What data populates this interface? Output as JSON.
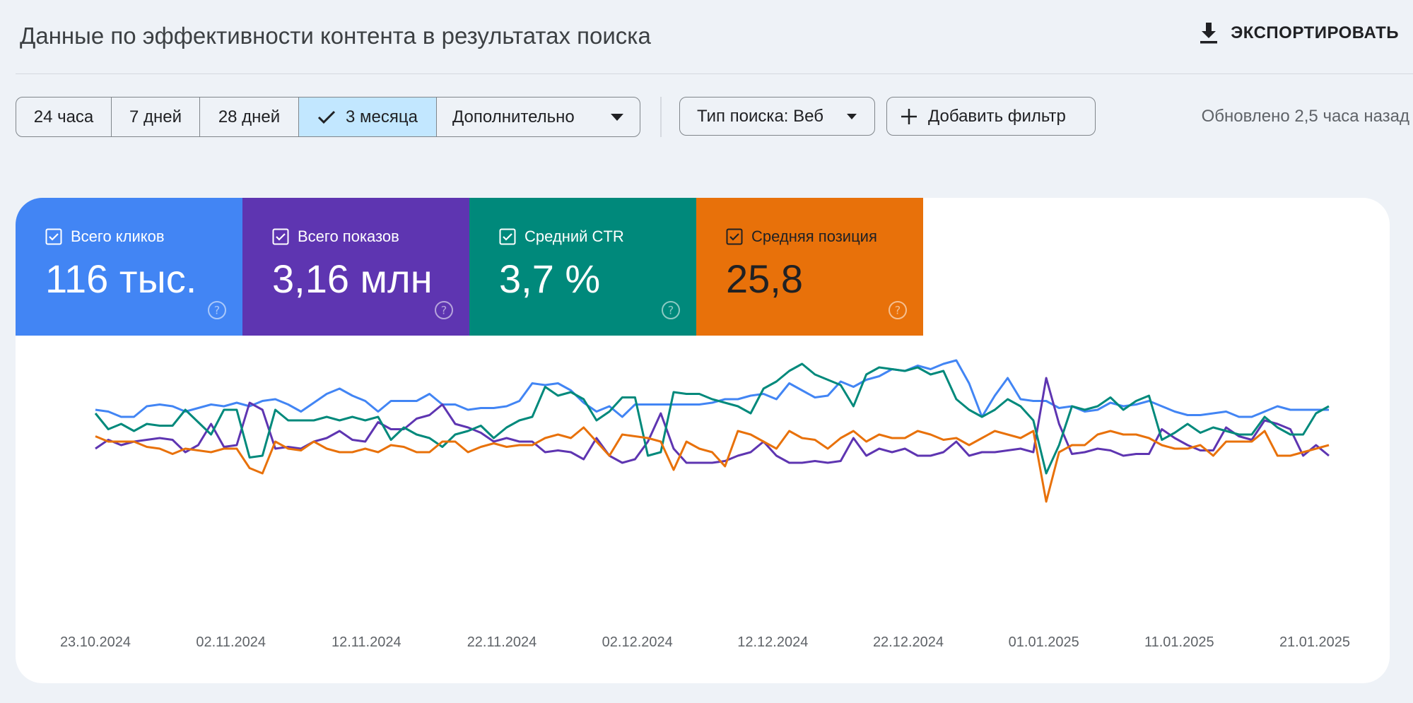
{
  "header": {
    "title": "Данные по эффективности контента в результатах поиска",
    "export_label": "ЭКСПОРТИРОВАТЬ"
  },
  "toolbar": {
    "date_ranges": [
      "24 часа",
      "7 дней",
      "28 дней",
      "3 месяца",
      "Дополнительно"
    ],
    "selected_range": "3 месяца",
    "search_type": "Тип поиска: Веб",
    "add_filter": "Добавить фильтр",
    "updated": "Обновлено 2,5 часа назад"
  },
  "metrics": [
    {
      "label": "Всего кликов",
      "value": "116 тыс.",
      "color": "#4285f4",
      "checked": true
    },
    {
      "label": "Всего показов",
      "value": "3,16 млн",
      "color": "#5e35b1",
      "checked": true
    },
    {
      "label": "Средний CTR",
      "value": "3,7 %",
      "color": "#00897b",
      "checked": true
    },
    {
      "label": "Средняя позиция",
      "value": "25,8",
      "color": "#e8710a",
      "checked": true
    }
  ],
  "chart_data": {
    "type": "line",
    "x_tick_labels": [
      "23.10.2024",
      "02.11.2024",
      "12.11.2024",
      "22.11.2024",
      "02.12.2024",
      "12.12.2024",
      "22.12.2024",
      "01.01.2025",
      "11.01.2025",
      "21.01.2025"
    ],
    "x_start": "23.10.2024",
    "x_end": "23.01.2025",
    "y_axis_visible": false,
    "grid": false,
    "series": [
      {
        "name": "Всего кликов",
        "color": "#4285f4",
        "values": [
          0.43,
          0.425,
          0.41,
          0.41,
          0.44,
          0.445,
          0.44,
          0.425,
          0.435,
          0.445,
          0.44,
          0.45,
          0.44,
          0.455,
          0.46,
          0.445,
          0.425,
          0.45,
          0.475,
          0.49,
          0.47,
          0.455,
          0.425,
          0.455,
          0.455,
          0.455,
          0.475,
          0.445,
          0.445,
          0.43,
          0.435,
          0.435,
          0.44,
          0.455,
          0.505,
          0.5,
          0.505,
          0.485,
          0.45,
          0.425,
          0.44,
          0.41,
          0.445,
          0.445,
          0.445,
          0.445,
          0.445,
          0.445,
          0.45,
          0.46,
          0.46,
          0.47,
          0.475,
          0.46,
          0.505,
          0.485,
          0.465,
          0.47,
          0.51,
          0.495,
          0.515,
          0.525,
          0.545,
          0.54,
          0.555,
          0.545,
          0.56,
          0.57,
          0.505,
          0.41,
          0.47,
          0.52,
          0.46,
          0.455,
          0.455,
          0.435,
          0.44,
          0.425,
          0.43,
          0.45,
          0.44,
          0.445,
          0.455,
          0.44,
          0.425,
          0.415,
          0.415,
          0.42,
          0.425,
          0.41,
          0.41,
          0.425,
          0.44,
          0.43,
          0.43,
          0.43,
          0.43
        ]
      },
      {
        "name": "Всего показов",
        "color": "#5e35b1",
        "values": [
          0.32,
          0.345,
          0.33,
          0.34,
          0.345,
          0.35,
          0.345,
          0.31,
          0.33,
          0.39,
          0.325,
          0.33,
          0.45,
          0.43,
          0.32,
          0.325,
          0.32,
          0.34,
          0.35,
          0.37,
          0.345,
          0.34,
          0.395,
          0.375,
          0.375,
          0.405,
          0.415,
          0.445,
          0.39,
          0.38,
          0.365,
          0.34,
          0.35,
          0.34,
          0.34,
          0.31,
          0.315,
          0.31,
          0.29,
          0.35,
          0.3,
          0.28,
          0.29,
          0.34,
          0.42,
          0.32,
          0.28,
          0.28,
          0.28,
          0.285,
          0.3,
          0.31,
          0.34,
          0.3,
          0.28,
          0.28,
          0.285,
          0.28,
          0.285,
          0.35,
          0.3,
          0.32,
          0.31,
          0.32,
          0.3,
          0.3,
          0.31,
          0.34,
          0.3,
          0.31,
          0.31,
          0.315,
          0.32,
          0.31,
          0.52,
          0.39,
          0.305,
          0.31,
          0.32,
          0.315,
          0.3,
          0.305,
          0.305,
          0.375,
          0.35,
          0.33,
          0.315,
          0.315,
          0.38,
          0.355,
          0.345,
          0.4,
          0.39,
          0.375,
          0.3,
          0.33,
          0.3
        ]
      },
      {
        "name": "Средний CTR",
        "color": "#00897b",
        "values": [
          0.42,
          0.375,
          0.39,
          0.37,
          0.39,
          0.385,
          0.385,
          0.43,
          0.395,
          0.36,
          0.43,
          0.43,
          0.295,
          0.3,
          0.43,
          0.4,
          0.4,
          0.4,
          0.41,
          0.4,
          0.41,
          0.4,
          0.41,
          0.345,
          0.38,
          0.36,
          0.35,
          0.325,
          0.36,
          0.37,
          0.385,
          0.35,
          0.38,
          0.4,
          0.41,
          0.495,
          0.47,
          0.48,
          0.46,
          0.4,
          0.425,
          0.465,
          0.465,
          0.3,
          0.31,
          0.48,
          0.475,
          0.475,
          0.46,
          0.45,
          0.44,
          0.42,
          0.49,
          0.51,
          0.54,
          0.56,
          0.53,
          0.515,
          0.5,
          0.44,
          0.53,
          0.55,
          0.545,
          0.54,
          0.55,
          0.53,
          0.54,
          0.46,
          0.43,
          0.41,
          0.43,
          0.46,
          0.44,
          0.4,
          0.25,
          0.33,
          0.44,
          0.43,
          0.44,
          0.465,
          0.43,
          0.455,
          0.47,
          0.345,
          0.365,
          0.39,
          0.365,
          0.38,
          0.37,
          0.36,
          0.36,
          0.41,
          0.38,
          0.36,
          0.36,
          0.42,
          0.44
        ]
      },
      {
        "name": "Средняя позиция",
        "color": "#e8710a",
        "values": [
          0.355,
          0.34,
          0.34,
          0.34,
          0.325,
          0.32,
          0.305,
          0.32,
          0.315,
          0.31,
          0.32,
          0.32,
          0.265,
          0.25,
          0.34,
          0.32,
          0.315,
          0.34,
          0.32,
          0.31,
          0.31,
          0.32,
          0.31,
          0.33,
          0.325,
          0.31,
          0.31,
          0.34,
          0.34,
          0.31,
          0.325,
          0.335,
          0.325,
          0.33,
          0.33,
          0.35,
          0.36,
          0.35,
          0.38,
          0.34,
          0.3,
          0.36,
          0.355,
          0.35,
          0.34,
          0.26,
          0.34,
          0.32,
          0.31,
          0.27,
          0.37,
          0.36,
          0.34,
          0.32,
          0.37,
          0.35,
          0.345,
          0.32,
          0.35,
          0.37,
          0.34,
          0.36,
          0.35,
          0.35,
          0.37,
          0.36,
          0.345,
          0.35,
          0.33,
          0.35,
          0.37,
          0.36,
          0.35,
          0.37,
          0.17,
          0.31,
          0.33,
          0.33,
          0.36,
          0.37,
          0.36,
          0.36,
          0.35,
          0.33,
          0.32,
          0.32,
          0.33,
          0.3,
          0.34,
          0.34,
          0.34,
          0.37,
          0.3,
          0.3,
          0.31,
          0.32,
          0.33
        ]
      }
    ]
  }
}
